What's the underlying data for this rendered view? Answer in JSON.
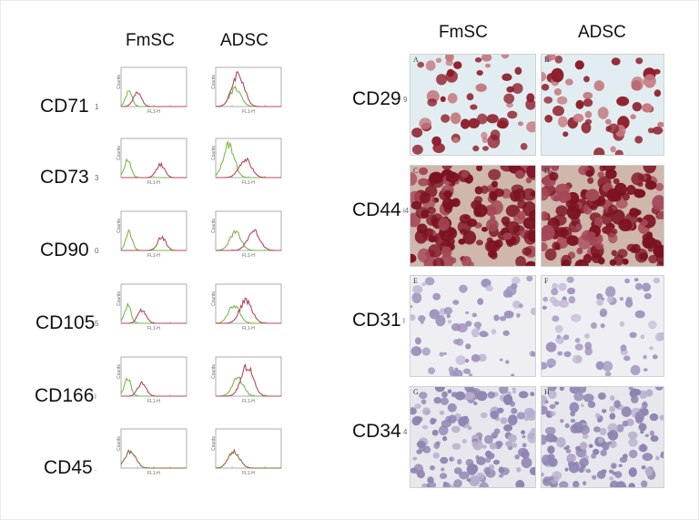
{
  "left_panel": {
    "columns": [
      "FmSC",
      "ADSC"
    ],
    "rows": [
      {
        "marker": "CD71",
        "tick": "1"
      },
      {
        "marker": "CD73",
        "tick": "3"
      },
      {
        "marker": "CD90",
        "tick": "0"
      },
      {
        "marker": "CD105",
        "tick": "5"
      },
      {
        "marker": "CD166",
        "tick": "i"
      },
      {
        "marker": "CD45",
        "tick": "."
      }
    ],
    "axis_text": {
      "ylabel": "Counts",
      "xlabel": "FL1-H"
    },
    "colors": {
      "control": "#7ab84a",
      "marker": "#b4485a",
      "both": "#8a6a3a"
    }
  },
  "right_panel": {
    "columns": [
      "FmSC",
      "ADSC"
    ],
    "rows": [
      {
        "marker": "CD29",
        "tick": "9",
        "panels": [
          "A",
          "B"
        ],
        "stain": "red-sparse"
      },
      {
        "marker": "CD44",
        "tick": "i4",
        "panels": [
          "C",
          "D"
        ],
        "stain": "red-dense"
      },
      {
        "marker": "CD31",
        "tick": "l",
        "panels": [
          "E",
          "F"
        ],
        "stain": "purple-light"
      },
      {
        "marker": "CD34",
        "tick": "4",
        "panels": [
          "G",
          "H"
        ],
        "stain": "purple-dense"
      }
    ]
  }
}
